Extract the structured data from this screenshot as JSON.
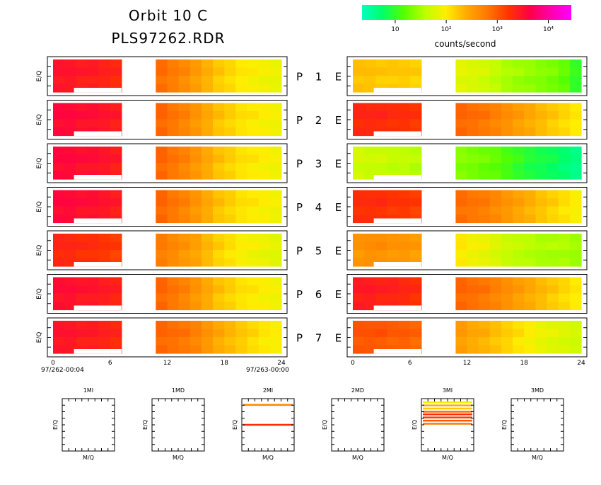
{
  "title": {
    "line1": "Orbit 10 C",
    "line2": "PLS97262.RDR"
  },
  "colorbar": {
    "label": "counts/second",
    "tick_labels": [
      "10",
      "10²",
      "10³",
      "10⁴"
    ],
    "tick_exponents": [
      1,
      2,
      3,
      4
    ],
    "log_min": 0.35,
    "log_max": 4.45,
    "colors": [
      "#00ffc0",
      "#00ff66",
      "#55ff00",
      "#bbff00",
      "#ffee00",
      "#ffaa00",
      "#ff7700",
      "#ff3300",
      "#ff0044",
      "#ff00aa",
      "#ff00ff"
    ]
  },
  "panel_text": {
    "ylabel": "E/Q",
    "p_letter": "P",
    "e_letter": "E"
  },
  "x_axis": {
    "ticks": [
      "0",
      "6",
      "12",
      "18",
      "24"
    ],
    "start_label": "97/262-00:04",
    "end_label": "97/263-00:00"
  },
  "mass_panel_text": {
    "xlabel": "M/Q",
    "ylabel": "E/Q"
  },
  "chart_data": {
    "type": "heatmap",
    "x_unit": "hours",
    "xlim": [
      0,
      24
    ],
    "colorbar_scale": "log",
    "data_gap_hours": [
      8.1,
      9.7
    ],
    "spectrogram_rows": [
      {
        "number": "1",
        "p_log_levels": [
          3.45,
          3.45,
          3.4,
          3.4,
          3.35,
          3.3,
          3.2,
          3.1,
          2.95,
          2.85,
          2.75,
          2.65,
          2.5,
          2.35,
          2.2,
          2.1,
          2.0,
          1.95,
          1.9,
          1.85
        ],
        "e_log_levels": [
          2.25,
          2.25,
          2.2,
          2.2,
          2.2,
          2.15,
          2.0,
          1.9,
          1.85,
          1.8,
          1.75,
          1.7,
          1.6,
          1.5,
          1.45,
          1.4,
          1.35,
          1.3,
          1.2,
          1.0
        ]
      },
      {
        "number": "2",
        "p_log_levels": [
          3.55,
          3.55,
          3.5,
          3.5,
          3.45,
          3.4,
          3.3,
          3.15,
          3.0,
          2.9,
          2.8,
          2.7,
          2.55,
          2.4,
          2.25,
          2.15,
          2.05,
          2.0,
          1.95,
          1.9
        ],
        "e_log_levels": [
          3.3,
          3.3,
          3.3,
          3.25,
          3.25,
          3.2,
          3.1,
          3.0,
          2.95,
          2.9,
          2.85,
          2.8,
          2.7,
          2.6,
          2.5,
          2.4,
          2.3,
          2.2,
          2.1,
          2.0
        ]
      },
      {
        "number": "3",
        "p_log_levels": [
          3.55,
          3.55,
          3.5,
          3.5,
          3.45,
          3.4,
          3.3,
          3.15,
          3.0,
          2.9,
          2.8,
          2.7,
          2.55,
          2.4,
          2.25,
          2.15,
          2.05,
          2.0,
          1.95,
          1.9
        ],
        "e_log_levels": [
          1.7,
          1.65,
          1.65,
          1.6,
          1.6,
          1.55,
          1.5,
          1.45,
          1.4,
          1.35,
          1.3,
          1.25,
          1.2,
          1.1,
          1.0,
          0.9,
          0.85,
          0.8,
          0.7,
          0.6
        ]
      },
      {
        "number": "4",
        "p_log_levels": [
          3.55,
          3.55,
          3.5,
          3.5,
          3.45,
          3.4,
          3.3,
          3.15,
          3.0,
          2.9,
          2.8,
          2.7,
          2.55,
          2.4,
          2.25,
          2.15,
          2.05,
          2.0,
          1.95,
          1.9
        ],
        "e_log_levels": [
          3.25,
          3.25,
          3.25,
          3.2,
          3.2,
          3.15,
          3.05,
          2.95,
          2.9,
          2.85,
          2.8,
          2.75,
          2.65,
          2.55,
          2.45,
          2.35,
          2.25,
          2.15,
          2.05,
          1.95
        ]
      },
      {
        "number": "5",
        "p_log_levels": [
          3.3,
          3.3,
          3.25,
          3.25,
          3.2,
          3.15,
          3.05,
          2.95,
          2.85,
          2.75,
          2.65,
          2.55,
          2.45,
          2.3,
          2.15,
          2.05,
          1.95,
          1.9,
          1.85,
          1.8
        ],
        "e_log_levels": [
          2.55,
          2.6,
          2.6,
          2.55,
          2.55,
          2.5,
          2.35,
          2.2,
          2.1,
          2.0,
          1.9,
          1.85,
          1.75,
          1.65,
          1.6,
          1.55,
          1.5,
          1.5,
          1.5,
          1.45
        ]
      },
      {
        "number": "6",
        "p_log_levels": [
          3.5,
          3.5,
          3.45,
          3.45,
          3.4,
          3.35,
          3.25,
          3.1,
          3.0,
          2.9,
          2.8,
          2.7,
          2.55,
          2.4,
          2.25,
          2.15,
          2.05,
          2.0,
          1.95,
          1.9
        ],
        "e_log_levels": [
          3.4,
          3.4,
          3.35,
          3.35,
          3.3,
          3.25,
          3.1,
          3.0,
          2.95,
          2.9,
          2.85,
          2.8,
          2.7,
          2.6,
          2.5,
          2.4,
          2.3,
          2.2,
          2.1,
          2.0
        ]
      },
      {
        "number": "7",
        "p_log_levels": [
          3.45,
          3.45,
          3.4,
          3.4,
          3.35,
          3.3,
          3.2,
          3.1,
          3.0,
          2.9,
          2.85,
          2.8,
          2.7,
          2.55,
          2.4,
          2.3,
          2.2,
          2.1,
          2.0,
          1.95
        ],
        "e_log_levels": [
          3.0,
          3.0,
          3.0,
          2.95,
          2.95,
          2.9,
          2.8,
          2.7,
          2.6,
          2.5,
          2.4,
          2.35,
          2.25,
          2.15,
          2.05,
          1.95,
          1.85,
          1.8,
          1.75,
          1.7
        ]
      }
    ],
    "mass_panels": [
      {
        "title": "1MI",
        "lines": []
      },
      {
        "title": "1MD",
        "lines": []
      },
      {
        "title": "2MI",
        "lines": [
          {
            "level": 0.88,
            "log_value": 2.7
          },
          {
            "level": 0.5,
            "log_value": 3.3
          }
        ]
      },
      {
        "title": "2MD",
        "lines": []
      },
      {
        "title": "3MI",
        "lines": [
          {
            "level": 0.93,
            "log_value": 1.9
          },
          {
            "level": 0.87,
            "log_value": 2.4
          },
          {
            "level": 0.81,
            "log_value": 2.2
          },
          {
            "level": 0.75,
            "log_value": 2.9
          },
          {
            "level": 0.7,
            "log_value": 3.3
          },
          {
            "level": 0.64,
            "log_value": 3.2
          },
          {
            "level": 0.58,
            "log_value": 3.0
          },
          {
            "level": 0.52,
            "log_value": 2.8
          }
        ]
      },
      {
        "title": "3MD",
        "lines": []
      }
    ]
  }
}
